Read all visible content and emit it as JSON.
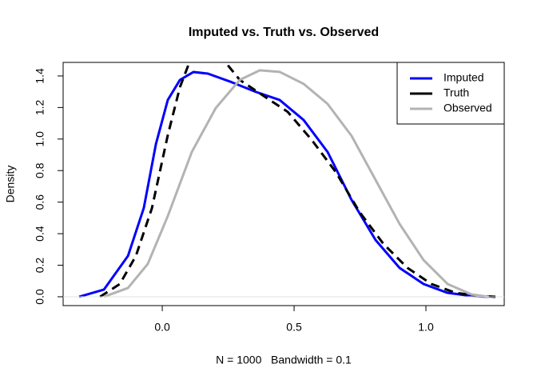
{
  "chart_data": {
    "type": "line",
    "title": "Imputed vs. Truth vs. Observed",
    "xlabel": "N = 1000   Bandwidth = 0.1",
    "ylabel": "Density",
    "xlim": [
      -0.376,
      1.297
    ],
    "ylim": [
      -0.056,
      1.486
    ],
    "xticks": [
      {
        "value": 0,
        "label": "0.0"
      },
      {
        "value": 0.5,
        "label": "0.5"
      },
      {
        "value": 1,
        "label": "1.0"
      }
    ],
    "yticks": [
      {
        "value": 0,
        "label": "0.0"
      },
      0.2,
      0.4,
      0.6,
      0.8,
      {
        "value": 1,
        "label": "1.0"
      },
      1.2,
      1.4
    ],
    "legend": "top-right",
    "series": [
      {
        "name": "Imputed",
        "color": "#0000ff",
        "linestyle": "solid",
        "x": [
          -0.315,
          -0.221,
          -0.13,
          -0.07,
          -0.024,
          0.021,
          0.067,
          0.118,
          0.173,
          0.264,
          0.355,
          0.445,
          0.536,
          0.627,
          0.718,
          0.809,
          0.9,
          0.991,
          1.082,
          1.173,
          1.239
        ],
        "values": [
          0,
          0.046,
          0.259,
          0.563,
          0.969,
          1.248,
          1.375,
          1.425,
          1.415,
          1.36,
          1.299,
          1.248,
          1.121,
          0.918,
          0.614,
          0.36,
          0.183,
          0.081,
          0.025,
          0.005,
          0
        ]
      },
      {
        "name": "Truth",
        "color": "#000000",
        "linestyle": "dashed",
        "x": [
          -0.236,
          -0.161,
          -0.1,
          -0.039,
          0.021,
          0.067,
          0.106,
          0.18,
          0.233,
          0.294,
          0.385,
          0.476,
          0.567,
          0.658,
          0.748,
          0.839,
          0.93,
          1.021,
          1.112,
          1.203,
          1.264
        ],
        "values": [
          0,
          0.081,
          0.259,
          0.563,
          1.025,
          1.329,
          1.5,
          1.62,
          1.5,
          1.375,
          1.273,
          1.172,
          0.994,
          0.791,
          0.538,
          0.335,
          0.183,
          0.081,
          0.025,
          0.005,
          0
        ]
      },
      {
        "name": "Observed",
        "color": "#b3b3b3",
        "linestyle": "solid",
        "x": [
          -0.221,
          -0.13,
          -0.055,
          0.021,
          0.112,
          0.203,
          0.294,
          0.37,
          0.445,
          0.536,
          0.627,
          0.718,
          0.809,
          0.9,
          0.991,
          1.082,
          1.173,
          1.239
        ],
        "values": [
          0,
          0.056,
          0.208,
          0.512,
          0.918,
          1.197,
          1.375,
          1.436,
          1.426,
          1.35,
          1.223,
          1.02,
          0.741,
          0.462,
          0.233,
          0.081,
          0.015,
          0
        ]
      }
    ]
  }
}
